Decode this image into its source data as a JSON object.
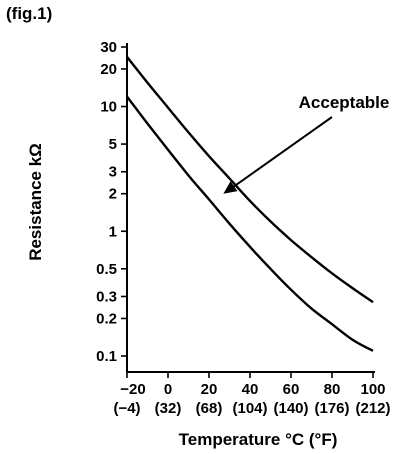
{
  "figure_label": "(fig.1)",
  "chart_data": {
    "type": "line",
    "title": "",
    "xlabel": "Temperature °C (°F)",
    "ylabel": "Resistance kΩ",
    "x_scale": "linear",
    "y_scale": "log",
    "xlim": [
      -20,
      100
    ],
    "ylim": [
      0.1,
      30
    ],
    "x_ticks": [
      {
        "value": -20,
        "label": "−20",
        "label2": "(−4)"
      },
      {
        "value": 0,
        "label": "0",
        "label2": "(32)"
      },
      {
        "value": 20,
        "label": "20",
        "label2": "(68)"
      },
      {
        "value": 40,
        "label": "40",
        "label2": "(104)"
      },
      {
        "value": 60,
        "label": "60",
        "label2": "(140)"
      },
      {
        "value": 80,
        "label": "80",
        "label2": "(176)"
      },
      {
        "value": 100,
        "label": "100",
        "label2": "(212)"
      }
    ],
    "y_ticks": [
      {
        "value": 30,
        "label": "30"
      },
      {
        "value": 20,
        "label": "20"
      },
      {
        "value": 10,
        "label": "10"
      },
      {
        "value": 5,
        "label": "5"
      },
      {
        "value": 3,
        "label": "3"
      },
      {
        "value": 2,
        "label": "2"
      },
      {
        "value": 1,
        "label": "1"
      },
      {
        "value": 0.5,
        "label": "0.5"
      },
      {
        "value": 0.3,
        "label": "0.3"
      },
      {
        "value": 0.2,
        "label": "0.2"
      },
      {
        "value": 0.1,
        "label": "0.1"
      }
    ],
    "series": [
      {
        "x": [
          -20,
          -10,
          0,
          10,
          20,
          30,
          40,
          50,
          60,
          70,
          80,
          90,
          100
        ],
        "y": [
          25,
          15.5,
          9.8,
          6.2,
          4.0,
          2.65,
          1.75,
          1.2,
          0.85,
          0.62,
          0.46,
          0.35,
          0.27
        ]
      },
      {
        "x": [
          -20,
          -10,
          0,
          10,
          20,
          30,
          40,
          50,
          60,
          70,
          80,
          90,
          100
        ],
        "y": [
          12,
          7.3,
          4.5,
          2.8,
          1.8,
          1.15,
          0.75,
          0.5,
          0.34,
          0.24,
          0.18,
          0.135,
          0.11
        ]
      }
    ],
    "annotations": [
      {
        "text": "Acceptable",
        "points_to": {
          "x": 27,
          "y": 2.0
        }
      }
    ],
    "grid": false,
    "line_color": "#000000"
  }
}
